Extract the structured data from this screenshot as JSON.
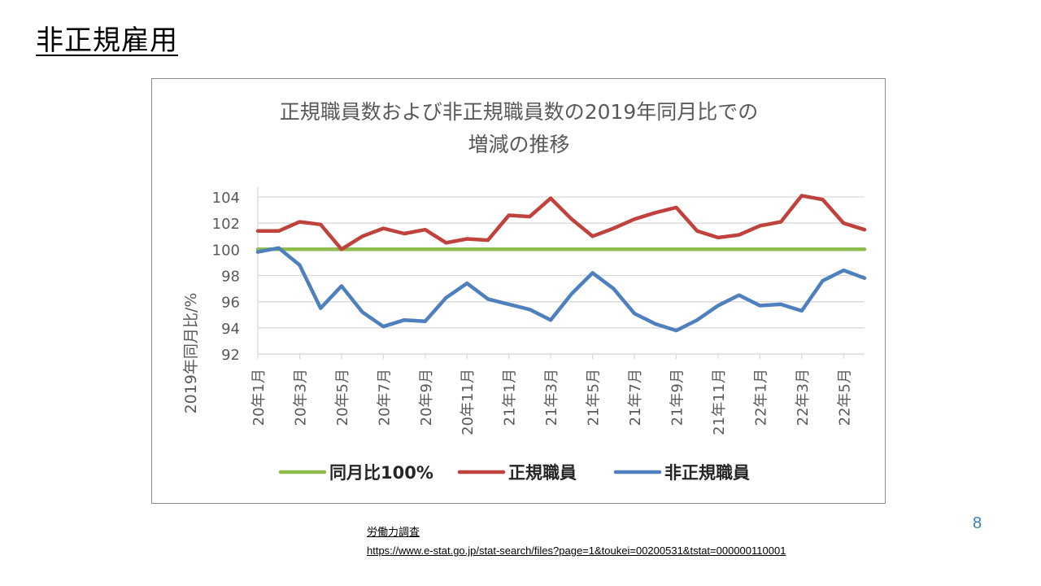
{
  "slide": {
    "title": "非正規雇用",
    "page_number": "8"
  },
  "source": {
    "name": "労働力調査",
    "url": "https://www.e-stat.go.jp/stat-search/files?page=1&toukei=00200531&tstat=000000110001"
  },
  "colors": {
    "baseline": "#8fbc4e",
    "regular": "#c0423d",
    "nonregular": "#4e80bd",
    "grid": "#d9d9d9",
    "text": "#595959"
  },
  "chart_data": {
    "type": "line",
    "title_lines": [
      "正規職員数および非正規職員数の2019年同月比での",
      "増減の推移"
    ],
    "ylabel": "2019年同月比/%",
    "ylim": [
      92,
      104
    ],
    "yticks": [
      92,
      94,
      96,
      98,
      100,
      102,
      104
    ],
    "grid": true,
    "legend_position": "bottom",
    "x": [
      "20年1月",
      "20年2月",
      "20年3月",
      "20年4月",
      "20年5月",
      "20年6月",
      "20年7月",
      "20年8月",
      "20年9月",
      "20年10月",
      "20年11月",
      "20年12月",
      "21年1月",
      "21年2月",
      "21年3月",
      "21年4月",
      "21年5月",
      "21年6月",
      "21年7月",
      "21年8月",
      "21年9月",
      "21年10月",
      "21年11月",
      "21年12月",
      "22年1月",
      "22年2月",
      "22年3月",
      "22年4月",
      "22年5月",
      "22年6月"
    ],
    "xtick_labels": [
      "20年1月",
      "",
      "20年3月",
      "",
      "20年5月",
      "",
      "20年7月",
      "",
      "20年9月",
      "",
      "20年11月",
      "",
      "21年1月",
      "",
      "21年3月",
      "",
      "21年5月",
      "",
      "21年7月",
      "",
      "21年9月",
      "",
      "21年11月",
      "",
      "22年1月",
      "",
      "22年3月",
      "",
      "22年5月",
      ""
    ],
    "series": [
      {
        "name": "同月比100%",
        "color_key": "baseline",
        "values": [
          100,
          100,
          100,
          100,
          100,
          100,
          100,
          100,
          100,
          100,
          100,
          100,
          100,
          100,
          100,
          100,
          100,
          100,
          100,
          100,
          100,
          100,
          100,
          100,
          100,
          100,
          100,
          100,
          100,
          100
        ]
      },
      {
        "name": "正規職員",
        "color_key": "regular",
        "values": [
          101.4,
          101.4,
          102.1,
          101.9,
          100.0,
          101.0,
          101.6,
          101.2,
          101.5,
          100.5,
          100.8,
          100.7,
          102.6,
          102.5,
          103.9,
          102.3,
          101.0,
          101.6,
          102.3,
          102.8,
          103.2,
          101.4,
          100.9,
          101.1,
          101.8,
          102.1,
          104.1,
          103.8,
          102.0,
          101.5
        ]
      },
      {
        "name": "非正規職員",
        "color_key": "nonregular",
        "values": [
          99.8,
          100.1,
          98.8,
          95.5,
          97.2,
          95.2,
          94.1,
          94.6,
          94.5,
          96.3,
          97.4,
          96.2,
          95.8,
          95.4,
          94.6,
          96.6,
          98.2,
          97.0,
          95.1,
          94.3,
          93.8,
          94.6,
          95.7,
          96.5,
          95.7,
          95.8,
          95.3,
          97.6,
          98.4,
          97.8
        ]
      }
    ]
  }
}
